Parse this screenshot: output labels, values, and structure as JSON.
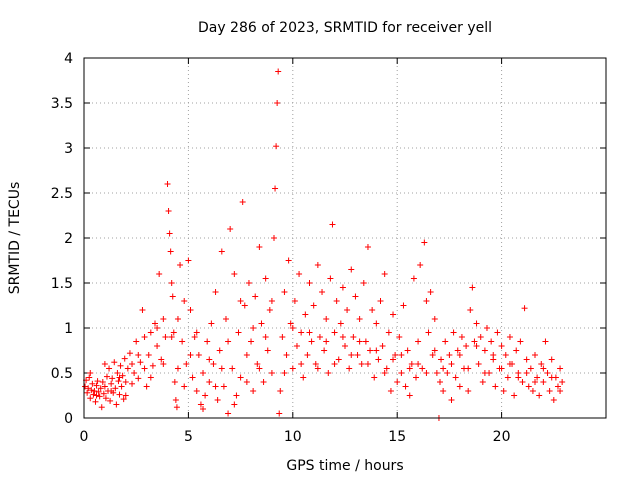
{
  "chart_data": {
    "type": "scatter",
    "title": "Day 286 of 2023, SRMTID for receiver yell",
    "xlabel": "GPS time / hours",
    "ylabel": "SRMTID / TECUs",
    "xlim": [
      0,
      25
    ],
    "ylim": [
      0,
      4
    ],
    "xticks": [
      0,
      5,
      10,
      15,
      20
    ],
    "xtick_labels": [
      "0",
      "5",
      "10",
      "15",
      "20"
    ],
    "yticks": [
      0,
      0.5,
      1,
      1.5,
      2,
      2.5,
      3,
      3.5,
      4
    ],
    "ytick_labels": [
      "0",
      "0.5",
      "1",
      "1.5",
      "2",
      "2.5",
      "3",
      "3.5",
      "4"
    ],
    "grid": true,
    "marker": "+",
    "color": "#ff0000",
    "series": [
      {
        "name": "SRMTID",
        "points": [
          [
            0.05,
            0.35
          ],
          [
            0.1,
            0.42
          ],
          [
            0.15,
            0.28
          ],
          [
            0.2,
            0.33
          ],
          [
            0.25,
            0.45
          ],
          [
            0.3,
            0.22
          ],
          [
            0.35,
            0.31
          ],
          [
            0.4,
            0.38
          ],
          [
            0.45,
            0.26
          ],
          [
            0.5,
            0.3
          ],
          [
            0.55,
            0.18
          ],
          [
            0.6,
            0.36
          ],
          [
            0.65,
            0.41
          ],
          [
            0.7,
            0.29
          ],
          [
            0.75,
            0.24
          ],
          [
            0.8,
            0.33
          ],
          [
            0.85,
            0.12
          ],
          [
            0.9,
            0.4
          ],
          [
            0.95,
            0.27
          ],
          [
            1.0,
            0.35
          ],
          [
            1.05,
            0.22
          ],
          [
            1.1,
            0.46
          ],
          [
            1.15,
            0.3
          ],
          [
            1.2,
            0.55
          ],
          [
            1.25,
            0.19
          ],
          [
            1.3,
            0.38
          ],
          [
            1.35,
            0.44
          ],
          [
            1.4,
            0.28
          ],
          [
            1.45,
            0.62
          ],
          [
            1.5,
            0.33
          ],
          [
            1.55,
            0.15
          ],
          [
            1.6,
            0.5
          ],
          [
            1.65,
            0.41
          ],
          [
            1.7,
            0.26
          ],
          [
            1.75,
            0.58
          ],
          [
            1.8,
            0.35
          ],
          [
            1.85,
            0.47
          ],
          [
            1.9,
            0.21
          ],
          [
            1.95,
            0.66
          ],
          [
            2.0,
            0.4
          ],
          [
            2.1,
            0.55
          ],
          [
            2.2,
            0.72
          ],
          [
            2.3,
            0.38
          ],
          [
            2.4,
            0.5
          ],
          [
            2.5,
            0.85
          ],
          [
            2.6,
            0.44
          ],
          [
            2.7,
            0.62
          ],
          [
            2.8,
            1.2
          ],
          [
            2.9,
            0.9
          ],
          [
            3.0,
            0.35
          ],
          [
            3.1,
            0.7
          ],
          [
            3.2,
            0.95
          ],
          [
            3.3,
            0.58
          ],
          [
            3.4,
            1.05
          ],
          [
            3.5,
            0.8
          ],
          [
            3.6,
            1.6
          ],
          [
            3.7,
            0.65
          ],
          [
            3.8,
            1.1
          ],
          [
            3.9,
            0.9
          ],
          [
            4.0,
            2.6
          ],
          [
            4.05,
            2.3
          ],
          [
            4.1,
            2.05
          ],
          [
            4.15,
            1.85
          ],
          [
            4.2,
            1.5
          ],
          [
            4.25,
            1.35
          ],
          [
            4.3,
            0.95
          ],
          [
            4.35,
            0.4
          ],
          [
            4.4,
            0.2
          ],
          [
            4.45,
            0.12
          ],
          [
            4.5,
            0.55
          ],
          [
            4.6,
            1.7
          ],
          [
            4.7,
            0.85
          ],
          [
            4.8,
            1.3
          ],
          [
            4.9,
            0.6
          ],
          [
            5.0,
            1.75
          ],
          [
            5.1,
            1.2
          ],
          [
            5.2,
            0.45
          ],
          [
            5.3,
            0.9
          ],
          [
            5.4,
            0.3
          ],
          [
            5.5,
            0.7
          ],
          [
            5.6,
            0.15
          ],
          [
            5.7,
            0.5
          ],
          [
            5.8,
            0.25
          ],
          [
            5.9,
            0.85
          ],
          [
            6.0,
            0.4
          ],
          [
            6.1,
            1.05
          ],
          [
            6.2,
            0.6
          ],
          [
            6.3,
            1.4
          ],
          [
            6.4,
            0.2
          ],
          [
            6.5,
            0.75
          ],
          [
            6.6,
            1.85
          ],
          [
            6.7,
            0.35
          ],
          [
            6.8,
            1.1
          ],
          [
            6.9,
            0.05
          ],
          [
            7.0,
            2.1
          ],
          [
            7.1,
            0.55
          ],
          [
            7.2,
            1.6
          ],
          [
            7.3,
            0.25
          ],
          [
            7.4,
            0.95
          ],
          [
            7.5,
            0.45
          ],
          [
            7.6,
            2.4
          ],
          [
            7.7,
            1.25
          ],
          [
            7.8,
            0.7
          ],
          [
            7.9,
            1.5
          ],
          [
            8.0,
            0.85
          ],
          [
            8.1,
            0.3
          ],
          [
            8.2,
            1.35
          ],
          [
            8.3,
            0.6
          ],
          [
            8.4,
            1.9
          ],
          [
            8.5,
            1.05
          ],
          [
            8.6,
            0.4
          ],
          [
            8.7,
            1.55
          ],
          [
            8.8,
            0.75
          ],
          [
            8.9,
            1.2
          ],
          [
            9.0,
            0.5
          ],
          [
            9.1,
            2.0
          ],
          [
            9.15,
            2.55
          ],
          [
            9.2,
            3.02
          ],
          [
            9.25,
            3.5
          ],
          [
            9.3,
            3.85
          ],
          [
            9.35,
            0.05
          ],
          [
            9.4,
            0.3
          ],
          [
            9.5,
            0.9
          ],
          [
            9.6,
            1.4
          ],
          [
            9.7,
            0.7
          ],
          [
            9.8,
            1.75
          ],
          [
            9.9,
            1.05
          ],
          [
            10.0,
            0.55
          ],
          [
            10.1,
            1.3
          ],
          [
            10.2,
            0.8
          ],
          [
            10.3,
            1.6
          ],
          [
            10.4,
            0.95
          ],
          [
            10.5,
            0.45
          ],
          [
            10.6,
            1.15
          ],
          [
            10.7,
            0.7
          ],
          [
            10.8,
            1.5
          ],
          [
            10.9,
            0.85
          ],
          [
            11.0,
            1.25
          ],
          [
            11.1,
            0.6
          ],
          [
            11.2,
            1.7
          ],
          [
            11.3,
            0.9
          ],
          [
            11.4,
            1.4
          ],
          [
            11.5,
            0.75
          ],
          [
            11.6,
            1.1
          ],
          [
            11.7,
            0.5
          ],
          [
            11.8,
            1.55
          ],
          [
            11.9,
            2.15
          ],
          [
            12.0,
            0.95
          ],
          [
            12.1,
            1.3
          ],
          [
            12.2,
            0.65
          ],
          [
            12.3,
            1.05
          ],
          [
            12.4,
            1.45
          ],
          [
            12.5,
            0.8
          ],
          [
            12.6,
            1.2
          ],
          [
            12.7,
            0.55
          ],
          [
            12.8,
            1.65
          ],
          [
            12.9,
            0.9
          ],
          [
            13.0,
            1.35
          ],
          [
            13.1,
            0.7
          ],
          [
            13.2,
            1.1
          ],
          [
            13.3,
            0.6
          ],
          [
            13.4,
            1.5
          ],
          [
            13.5,
            0.85
          ],
          [
            13.6,
            1.9
          ],
          [
            13.7,
            0.75
          ],
          [
            13.8,
            1.2
          ],
          [
            13.9,
            0.45
          ],
          [
            14.0,
            1.05
          ],
          [
            14.1,
            0.65
          ],
          [
            14.2,
            1.3
          ],
          [
            14.3,
            0.8
          ],
          [
            14.4,
            1.6
          ],
          [
            14.5,
            0.55
          ],
          [
            14.6,
            0.95
          ],
          [
            14.7,
            0.3
          ],
          [
            14.8,
            1.15
          ],
          [
            14.9,
            0.7
          ],
          [
            15.0,
            0.4
          ],
          [
            15.1,
            0.9
          ],
          [
            15.2,
            0.5
          ],
          [
            15.3,
            1.25
          ],
          [
            15.4,
            0.35
          ],
          [
            15.5,
            0.75
          ],
          [
            15.6,
            0.25
          ],
          [
            15.7,
            0.6
          ],
          [
            15.8,
            1.55
          ],
          [
            15.9,
            0.45
          ],
          [
            16.0,
            0.85
          ],
          [
            16.1,
            1.7
          ],
          [
            16.2,
            0.55
          ],
          [
            16.3,
            1.95
          ],
          [
            16.4,
            1.3
          ],
          [
            16.5,
            0.95
          ],
          [
            16.6,
            1.4
          ],
          [
            16.7,
            0.7
          ],
          [
            16.8,
            1.1
          ],
          [
            16.9,
            0.5
          ],
          [
            17.0,
            0.0
          ],
          [
            17.05,
            0.4
          ],
          [
            17.1,
            0.65
          ],
          [
            17.2,
            0.3
          ],
          [
            17.3,
            0.85
          ],
          [
            17.4,
            0.5
          ],
          [
            17.5,
            0.7
          ],
          [
            17.6,
            0.2
          ],
          [
            17.7,
            0.95
          ],
          [
            17.8,
            0.45
          ],
          [
            17.9,
            0.75
          ],
          [
            18.0,
            0.35
          ],
          [
            18.1,
            0.9
          ],
          [
            18.2,
            0.55
          ],
          [
            18.3,
            0.8
          ],
          [
            18.4,
            0.3
          ],
          [
            18.5,
            1.2
          ],
          [
            18.6,
            1.45
          ],
          [
            18.7,
            0.85
          ],
          [
            18.8,
            1.05
          ],
          [
            18.9,
            0.6
          ],
          [
            19.0,
            0.9
          ],
          [
            19.1,
            0.4
          ],
          [
            19.2,
            0.75
          ],
          [
            19.3,
            1.0
          ],
          [
            19.4,
            0.5
          ],
          [
            19.5,
            0.85
          ],
          [
            19.6,
            0.65
          ],
          [
            19.7,
            0.35
          ],
          [
            19.8,
            0.95
          ],
          [
            19.9,
            0.55
          ],
          [
            20.0,
            0.8
          ],
          [
            20.1,
            0.3
          ],
          [
            20.2,
            0.7
          ],
          [
            20.3,
            0.45
          ],
          [
            20.4,
            0.9
          ],
          [
            20.5,
            0.6
          ],
          [
            20.6,
            0.25
          ],
          [
            20.7,
            0.75
          ],
          [
            20.8,
            0.5
          ],
          [
            20.9,
            0.85
          ],
          [
            21.0,
            0.4
          ],
          [
            21.1,
            1.22
          ],
          [
            21.2,
            0.65
          ],
          [
            21.3,
            0.35
          ],
          [
            21.4,
            0.55
          ],
          [
            21.5,
            0.3
          ],
          [
            21.6,
            0.7
          ],
          [
            21.7,
            0.45
          ],
          [
            21.8,
            0.25
          ],
          [
            21.9,
            0.6
          ],
          [
            22.0,
            0.4
          ],
          [
            22.1,
            0.85
          ],
          [
            22.2,
            0.5
          ],
          [
            22.3,
            0.3
          ],
          [
            22.4,
            0.65
          ],
          [
            22.5,
            0.2
          ],
          [
            22.6,
            0.45
          ],
          [
            22.7,
            0.35
          ],
          [
            22.8,
            0.55
          ],
          [
            22.9,
            0.4
          ],
          [
            0.3,
            0.5
          ],
          [
            0.6,
            0.25
          ],
          [
            1.0,
            0.6
          ],
          [
            1.3,
            0.3
          ],
          [
            1.7,
            0.45
          ],
          [
            2.0,
            0.25
          ],
          [
            2.3,
            0.6
          ],
          [
            2.6,
            0.7
          ],
          [
            2.9,
            0.55
          ],
          [
            3.2,
            0.45
          ],
          [
            3.5,
            1.0
          ],
          [
            3.8,
            0.6
          ],
          [
            4.2,
            0.9
          ],
          [
            4.5,
            1.1
          ],
          [
            4.8,
            0.35
          ],
          [
            5.1,
            0.7
          ],
          [
            5.4,
            0.95
          ],
          [
            5.7,
            0.1
          ],
          [
            6.0,
            0.65
          ],
          [
            6.3,
            0.35
          ],
          [
            6.6,
            0.55
          ],
          [
            6.9,
            0.85
          ],
          [
            7.2,
            0.15
          ],
          [
            7.5,
            1.3
          ],
          [
            7.8,
            0.4
          ],
          [
            8.1,
            1.0
          ],
          [
            8.4,
            0.55
          ],
          [
            8.7,
            0.9
          ],
          [
            9.0,
            1.3
          ],
          [
            9.6,
            0.5
          ],
          [
            10.0,
            1.0
          ],
          [
            10.4,
            0.6
          ],
          [
            10.8,
            0.95
          ],
          [
            11.2,
            0.55
          ],
          [
            11.6,
            0.85
          ],
          [
            12.0,
            0.6
          ],
          [
            12.4,
            0.9
          ],
          [
            12.8,
            0.7
          ],
          [
            13.2,
            0.85
          ],
          [
            13.6,
            0.6
          ],
          [
            14.0,
            0.75
          ],
          [
            14.4,
            0.5
          ],
          [
            14.8,
            0.65
          ],
          [
            15.2,
            0.7
          ],
          [
            15.6,
            0.55
          ],
          [
            16.0,
            0.6
          ],
          [
            16.4,
            0.5
          ],
          [
            16.8,
            0.75
          ],
          [
            17.2,
            0.55
          ],
          [
            17.6,
            0.6
          ],
          [
            18.0,
            0.7
          ],
          [
            18.4,
            0.55
          ],
          [
            18.8,
            0.8
          ],
          [
            19.2,
            0.5
          ],
          [
            19.6,
            0.7
          ],
          [
            20.0,
            0.55
          ],
          [
            20.4,
            0.6
          ],
          [
            20.8,
            0.45
          ],
          [
            21.2,
            0.5
          ],
          [
            21.6,
            0.4
          ],
          [
            22.0,
            0.55
          ],
          [
            22.4,
            0.45
          ],
          [
            22.8,
            0.3
          ]
        ]
      }
    ]
  }
}
